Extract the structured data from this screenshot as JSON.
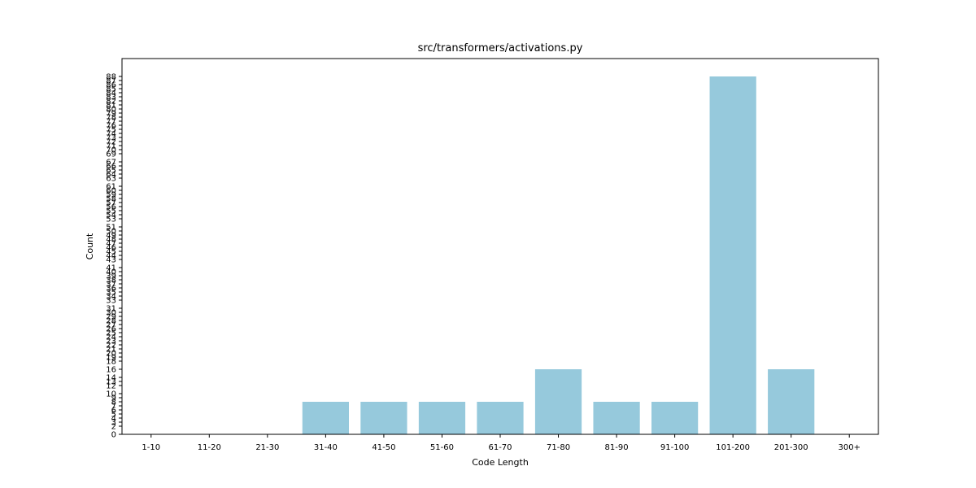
{
  "chart_data": {
    "type": "bar",
    "title": "src/transformers/activations.py",
    "xlabel": "Code Length",
    "ylabel": "Count",
    "categories": [
      "1-10",
      "11-20",
      "21-30",
      "31-40",
      "41-50",
      "51-60",
      "61-70",
      "71-80",
      "81-90",
      "91-100",
      "101-200",
      "201-300",
      "300+"
    ],
    "values": [
      0,
      0,
      0,
      8,
      8,
      8,
      8,
      16,
      8,
      8,
      88,
      16,
      0
    ],
    "yticks": [
      0,
      2,
      3,
      4,
      5,
      6,
      7,
      8,
      9,
      10,
      12,
      13,
      14,
      16,
      18,
      19,
      20,
      21,
      22,
      23,
      24,
      25,
      26,
      27,
      28,
      29,
      30,
      31,
      33,
      34,
      35,
      36,
      37,
      38,
      39,
      40,
      41,
      43,
      44,
      45,
      46,
      47,
      48,
      49,
      50,
      51,
      53,
      54,
      55,
      56,
      57,
      58,
      59,
      60,
      61,
      63,
      64,
      65,
      66,
      67,
      69,
      70,
      71,
      72,
      73,
      74,
      75,
      76,
      77,
      78,
      79,
      80,
      81,
      82,
      83,
      84,
      85,
      86,
      87,
      88
    ],
    "ylim": [
      0,
      92.4
    ],
    "grid": false,
    "colors": {
      "bar": "#96c9dc",
      "axis": "#000000"
    }
  }
}
